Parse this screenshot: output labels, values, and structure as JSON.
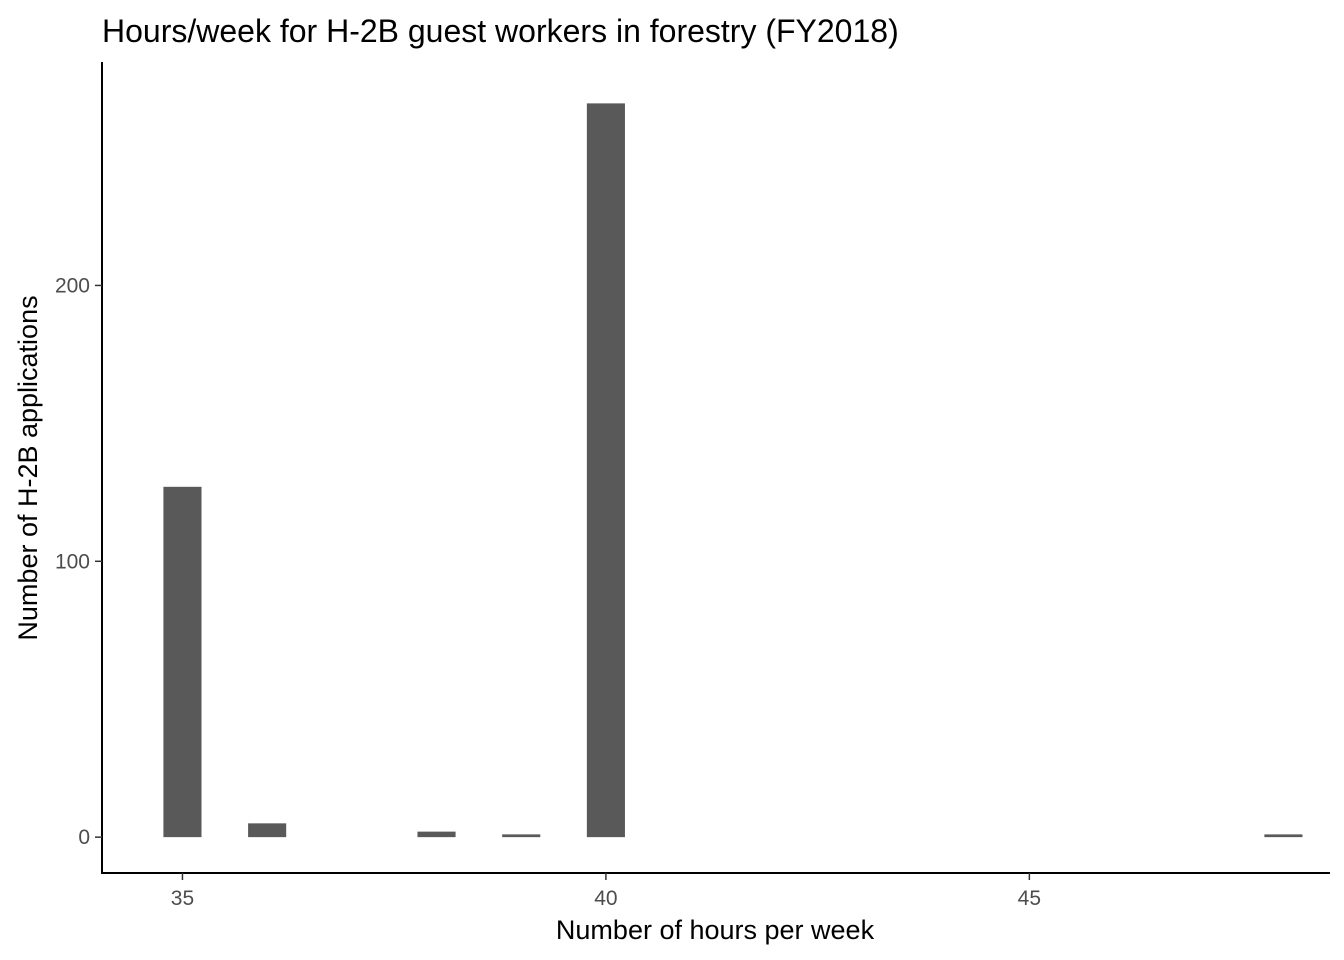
{
  "chart_data": {
    "type": "bar",
    "title": "Hours/week for H-2B guest workers in forestry (FY2018)",
    "xlabel": "Number of hours per week",
    "ylabel": "Number of H-2B applications",
    "x": [
      35,
      36,
      38,
      39,
      40,
      48
    ],
    "values": [
      127,
      5,
      2,
      1,
      266,
      1
    ],
    "xlim": [
      34.05,
      48.55
    ],
    "ylim": [
      -13,
      281
    ],
    "xticks": [
      35,
      40,
      45
    ],
    "xtick_labels": [
      "35",
      "40",
      "45"
    ],
    "yticks": [
      0,
      100,
      200
    ],
    "ytick_labels": [
      "0",
      "100",
      "200"
    ],
    "bar_color": "#595959",
    "grid": false,
    "legend": "none"
  }
}
